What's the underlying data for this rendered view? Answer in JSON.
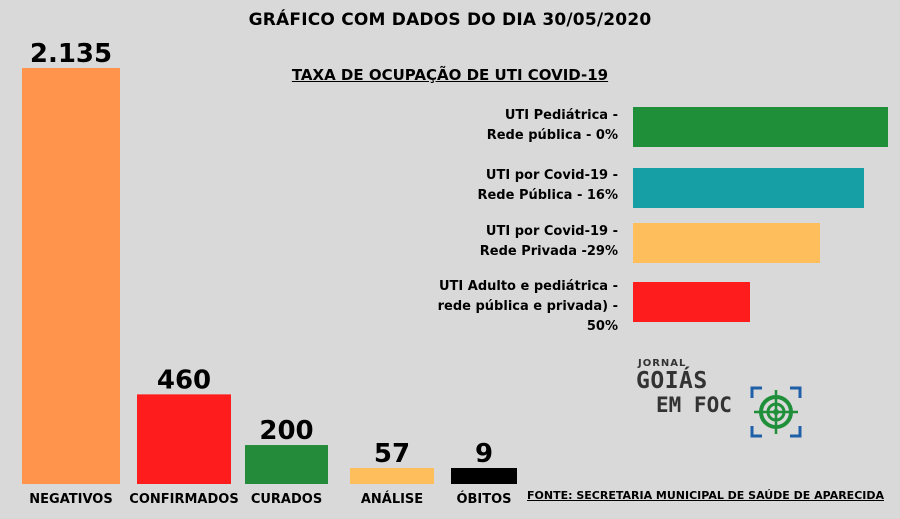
{
  "title": "GRÁFICO COM DADOS DO DIA 30/05/2020",
  "chart_data": [
    {
      "type": "bar",
      "categories": [
        "NEGATIVOS",
        "CONFIRMADOS",
        "CURADOS",
        "ANÁLISE",
        "ÓBITOS"
      ],
      "values": [
        2135,
        460,
        200,
        57,
        9
      ],
      "value_labels": [
        "2.135",
        "460",
        "200",
        "57",
        "9"
      ],
      "colors": [
        "#ff944d",
        "#ff1c1c",
        "#238b3a",
        "#ffbe5c",
        "#000000"
      ],
      "ylim": [
        0,
        2135
      ],
      "grid": false
    },
    {
      "type": "bar",
      "orientation": "horizontal",
      "title": "TAXA DE OCUPAÇÃO DE UTI COVID-19",
      "categories": [
        "UTI Pediátrica -\nRede pública - 0%",
        "UTI por Covid-19 -\nRede Pública - 16%",
        "UTI por Covid-19 -\nRede Privada -29%",
        "UTI Adulto e pediátrica -\nrede pública e privada) -\n50%"
      ],
      "values": [
        0,
        16,
        29,
        50
      ],
      "colors": [
        "#1f8f3a",
        "#16a0a5",
        "#ffbe5c",
        "#ff1c1c"
      ],
      "grid": false
    }
  ],
  "source": "FONTE: SECRETARIA MUNICIPAL DE SAÚDE DE APARECIDA",
  "logo": {
    "line1": "JORNAL",
    "line2": "GOIÁS",
    "line3": "EM FOC"
  }
}
